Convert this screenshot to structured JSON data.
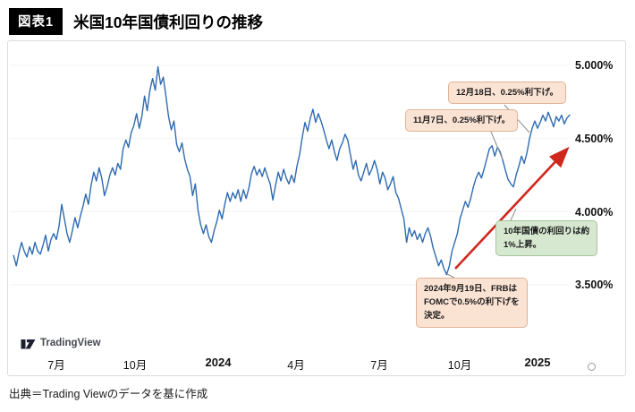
{
  "page": {
    "badge": "図表1",
    "title": "米国10年国債利回りの推移",
    "source": "出典＝Trading Viewのデータを基に作成"
  },
  "logo": {
    "text": "TradingView"
  },
  "annotations": [
    {
      "id": "dec-cut",
      "text": "12月18日、0.25%利下げ。",
      "style": "peach"
    },
    {
      "id": "nov-cut",
      "text": "11月7日、0.25%利下げ。",
      "style": "peach"
    },
    {
      "id": "yield-rise",
      "text": "10年国債の利回りは約\n1%上昇。",
      "style": "green"
    },
    {
      "id": "sep-cut",
      "text": "2024年9月19日、FRBは\nFOMCで0.5%の利下げを\n決定。",
      "style": "peach"
    }
  ],
  "chart_data": {
    "type": "line",
    "title": "米国10年国債利回りの推移",
    "series_name": "米国10年国債利回り",
    "unit": "%",
    "line_color": "#2e6bb2",
    "grid": "faint-horizontal",
    "legend": "none",
    "x_axis": {
      "labels": [
        "7月",
        "10月",
        "2024",
        "4月",
        "7月",
        "10月",
        "2025"
      ],
      "months_from_2023_07": [
        0,
        3,
        6,
        9,
        12,
        15,
        18
      ]
    },
    "y_axis": {
      "labels": [
        "5.000%",
        "4.500%",
        "4.000%",
        "3.500%"
      ],
      "values": [
        5.0,
        4.5,
        4.0,
        3.5
      ],
      "range": [
        3.35,
        5.1
      ]
    },
    "trend_arrow": {
      "from_month": 14.92,
      "from_value": 3.61,
      "to_month": 19.07,
      "to_value": 4.42,
      "color": "#d0271d",
      "meaning": "10年国債の利回りは約1%上昇"
    },
    "points": [
      [
        -1.6,
        3.7
      ],
      [
        -1.5,
        3.63
      ],
      [
        -1.4,
        3.72
      ],
      [
        -1.3,
        3.79
      ],
      [
        -1.2,
        3.73
      ],
      [
        -1.1,
        3.69
      ],
      [
        -1.0,
        3.76
      ],
      [
        -0.9,
        3.71
      ],
      [
        -0.8,
        3.79
      ],
      [
        -0.7,
        3.73
      ],
      [
        -0.6,
        3.71
      ],
      [
        -0.5,
        3.77
      ],
      [
        -0.4,
        3.84
      ],
      [
        -0.3,
        3.73
      ],
      [
        -0.2,
        3.81
      ],
      [
        -0.1,
        3.85
      ],
      [
        0,
        3.81
      ],
      [
        0.1,
        3.9
      ],
      [
        0.2,
        4.05
      ],
      [
        0.3,
        3.95
      ],
      [
        0.4,
        3.85
      ],
      [
        0.5,
        3.79
      ],
      [
        0.6,
        3.87
      ],
      [
        0.7,
        3.96
      ],
      [
        0.8,
        3.89
      ],
      [
        0.9,
        3.97
      ],
      [
        1.0,
        4.04
      ],
      [
        1.1,
        4.12
      ],
      [
        1.2,
        4.05
      ],
      [
        1.3,
        4.18
      ],
      [
        1.4,
        4.27
      ],
      [
        1.5,
        4.21
      ],
      [
        1.6,
        4.3
      ],
      [
        1.7,
        4.23
      ],
      [
        1.8,
        4.11
      ],
      [
        1.9,
        4.17
      ],
      [
        2.0,
        4.25
      ],
      [
        2.1,
        4.3
      ],
      [
        2.2,
        4.25
      ],
      [
        2.3,
        4.33
      ],
      [
        2.4,
        4.29
      ],
      [
        2.5,
        4.43
      ],
      [
        2.6,
        4.49
      ],
      [
        2.7,
        4.44
      ],
      [
        2.8,
        4.54
      ],
      [
        2.9,
        4.59
      ],
      [
        3.0,
        4.67
      ],
      [
        3.1,
        4.57
      ],
      [
        3.2,
        4.65
      ],
      [
        3.3,
        4.79
      ],
      [
        3.4,
        4.69
      ],
      [
        3.5,
        4.83
      ],
      [
        3.6,
        4.91
      ],
      [
        3.7,
        4.83
      ],
      [
        3.8,
        4.99
      ],
      [
        3.9,
        4.87
      ],
      [
        4.0,
        4.92
      ],
      [
        4.1,
        4.79
      ],
      [
        4.2,
        4.65
      ],
      [
        4.3,
        4.56
      ],
      [
        4.4,
        4.62
      ],
      [
        4.5,
        4.46
      ],
      [
        4.6,
        4.41
      ],
      [
        4.7,
        4.47
      ],
      [
        4.8,
        4.36
      ],
      [
        4.9,
        4.29
      ],
      [
        5.0,
        4.24
      ],
      [
        5.1,
        4.11
      ],
      [
        5.2,
        4.19
      ],
      [
        5.3,
        4.01
      ],
      [
        5.4,
        3.91
      ],
      [
        5.5,
        3.85
      ],
      [
        5.6,
        3.91
      ],
      [
        5.7,
        3.83
      ],
      [
        5.8,
        3.79
      ],
      [
        5.9,
        3.87
      ],
      [
        6.0,
        3.93
      ],
      [
        6.1,
        4.01
      ],
      [
        6.2,
        3.95
      ],
      [
        6.3,
        4.05
      ],
      [
        6.4,
        4.13
      ],
      [
        6.5,
        4.07
      ],
      [
        6.6,
        4.13
      ],
      [
        6.7,
        4.09
      ],
      [
        6.8,
        4.15
      ],
      [
        6.9,
        4.07
      ],
      [
        7.0,
        4.15
      ],
      [
        7.1,
        4.09
      ],
      [
        7.2,
        4.16
      ],
      [
        7.3,
        4.26
      ],
      [
        7.4,
        4.31
      ],
      [
        7.5,
        4.25
      ],
      [
        7.6,
        4.29
      ],
      [
        7.7,
        4.24
      ],
      [
        7.8,
        4.3
      ],
      [
        7.9,
        4.24
      ],
      [
        8.0,
        4.19
      ],
      [
        8.1,
        4.08
      ],
      [
        8.2,
        4.18
      ],
      [
        8.3,
        4.27
      ],
      [
        8.4,
        4.21
      ],
      [
        8.5,
        4.29
      ],
      [
        8.6,
        4.23
      ],
      [
        8.7,
        4.19
      ],
      [
        8.8,
        4.25
      ],
      [
        8.9,
        4.2
      ],
      [
        9.0,
        4.31
      ],
      [
        9.1,
        4.39
      ],
      [
        9.2,
        4.51
      ],
      [
        9.3,
        4.61
      ],
      [
        9.4,
        4.55
      ],
      [
        9.5,
        4.64
      ],
      [
        9.6,
        4.7
      ],
      [
        9.7,
        4.61
      ],
      [
        9.8,
        4.67
      ],
      [
        9.9,
        4.62
      ],
      [
        10.0,
        4.56
      ],
      [
        10.1,
        4.49
      ],
      [
        10.2,
        4.43
      ],
      [
        10.3,
        4.49
      ],
      [
        10.4,
        4.41
      ],
      [
        10.5,
        4.35
      ],
      [
        10.6,
        4.43
      ],
      [
        10.7,
        4.47
      ],
      [
        10.8,
        4.53
      ],
      [
        10.9,
        4.49
      ],
      [
        11.0,
        4.39
      ],
      [
        11.1,
        4.29
      ],
      [
        11.2,
        4.35
      ],
      [
        11.3,
        4.25
      ],
      [
        11.4,
        4.21
      ],
      [
        11.5,
        4.27
      ],
      [
        11.6,
        4.33
      ],
      [
        11.7,
        4.25
      ],
      [
        11.8,
        4.29
      ],
      [
        11.9,
        4.35
      ],
      [
        12.0,
        4.29
      ],
      [
        12.1,
        4.19
      ],
      [
        12.2,
        4.27
      ],
      [
        12.3,
        4.23
      ],
      [
        12.4,
        4.15
      ],
      [
        12.5,
        4.19
      ],
      [
        12.6,
        4.24
      ],
      [
        12.7,
        4.13
      ],
      [
        12.8,
        4.09
      ],
      [
        12.9,
        4.02
      ],
      [
        13.0,
        3.95
      ],
      [
        13.1,
        3.79
      ],
      [
        13.2,
        3.89
      ],
      [
        13.3,
        3.83
      ],
      [
        13.4,
        3.87
      ],
      [
        13.5,
        3.81
      ],
      [
        13.6,
        3.85
      ],
      [
        13.7,
        3.79
      ],
      [
        13.8,
        3.85
      ],
      [
        13.9,
        3.89
      ],
      [
        14.0,
        3.83
      ],
      [
        14.1,
        3.75
      ],
      [
        14.2,
        3.69
      ],
      [
        14.3,
        3.63
      ],
      [
        14.4,
        3.67
      ],
      [
        14.5,
        3.61
      ],
      [
        14.6,
        3.57
      ],
      [
        14.7,
        3.63
      ],
      [
        14.8,
        3.73
      ],
      [
        14.9,
        3.79
      ],
      [
        15.0,
        3.85
      ],
      [
        15.1,
        3.95
      ],
      [
        15.2,
        4.01
      ],
      [
        15.3,
        4.07
      ],
      [
        15.4,
        4.03
      ],
      [
        15.5,
        4.09
      ],
      [
        15.6,
        4.17
      ],
      [
        15.7,
        4.23
      ],
      [
        15.8,
        4.27
      ],
      [
        15.9,
        4.23
      ],
      [
        16.0,
        4.29
      ],
      [
        16.1,
        4.36
      ],
      [
        16.2,
        4.43
      ],
      [
        16.3,
        4.45
      ],
      [
        16.4,
        4.38
      ],
      [
        16.5,
        4.44
      ],
      [
        16.6,
        4.41
      ],
      [
        16.7,
        4.35
      ],
      [
        16.8,
        4.28
      ],
      [
        16.9,
        4.22
      ],
      [
        17.0,
        4.19
      ],
      [
        17.1,
        4.17
      ],
      [
        17.2,
        4.25
      ],
      [
        17.3,
        4.31
      ],
      [
        17.4,
        4.38
      ],
      [
        17.5,
        4.33
      ],
      [
        17.6,
        4.4
      ],
      [
        17.7,
        4.5
      ],
      [
        17.8,
        4.57
      ],
      [
        17.9,
        4.62
      ],
      [
        18.0,
        4.57
      ],
      [
        18.1,
        4.61
      ],
      [
        18.2,
        4.66
      ],
      [
        18.3,
        4.62
      ],
      [
        18.4,
        4.68
      ],
      [
        18.5,
        4.63
      ],
      [
        18.6,
        4.58
      ],
      [
        18.7,
        4.65
      ],
      [
        18.8,
        4.62
      ],
      [
        18.9,
        4.66
      ],
      [
        19.0,
        4.6
      ],
      [
        19.1,
        4.64
      ],
      [
        19.2,
        4.66
      ]
    ]
  }
}
